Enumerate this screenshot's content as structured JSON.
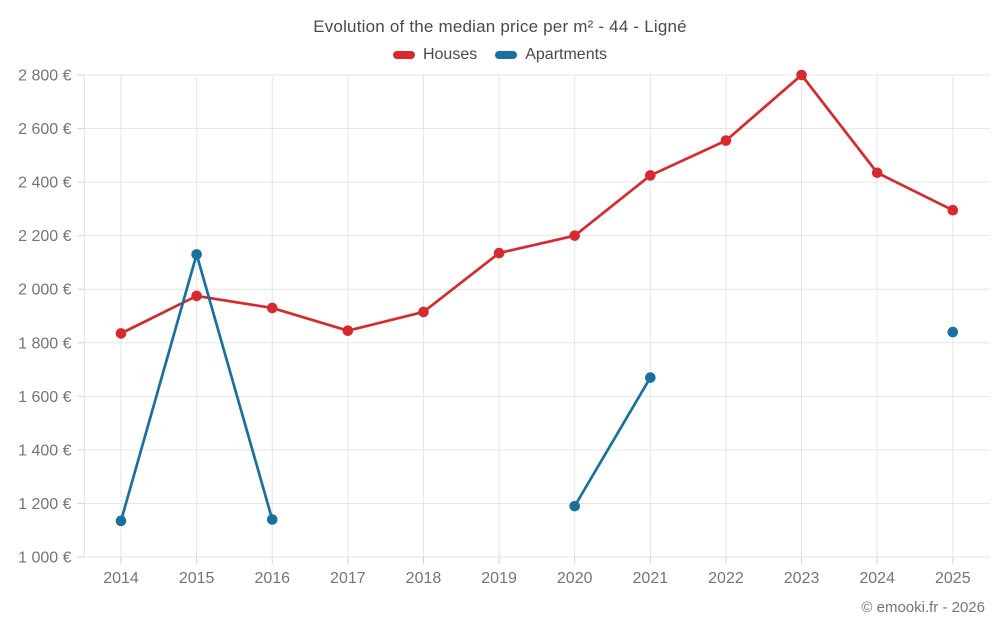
{
  "footer": {
    "copyright": "© emooki.fr - 2026"
  },
  "colors": {
    "houses": "#d8292f",
    "apartments": "#17709f",
    "gridline": "#e6e6e6",
    "tick": "#d2d2d2",
    "axis_label": "#757575",
    "title_text": "#4a4a4a",
    "background": "#ffffff"
  },
  "chart_data": {
    "type": "line",
    "title": "Evolution of the median price per m² - 44 - Ligné",
    "x": [
      "2014",
      "2015",
      "2016",
      "2017",
      "2018",
      "2019",
      "2020",
      "2021",
      "2022",
      "2023",
      "2024",
      "2025"
    ],
    "series": [
      {
        "name": "Houses",
        "color": "#d8292f",
        "values": [
          1835,
          1975,
          1930,
          1845,
          1915,
          2135,
          2200,
          2425,
          2555,
          2800,
          2435,
          2295
        ]
      },
      {
        "name": "Apartments",
        "color": "#17709f",
        "values": [
          1135,
          2130,
          1140,
          null,
          null,
          null,
          1190,
          1670,
          null,
          null,
          null,
          1840
        ]
      }
    ],
    "ylim": [
      1000,
      2800
    ],
    "ytick_step": 200,
    "yticks": [
      {
        "value": 1000,
        "label": "1 000 €"
      },
      {
        "value": 1200,
        "label": "1 200 €"
      },
      {
        "value": 1400,
        "label": "1 400 €"
      },
      {
        "value": 1600,
        "label": "1 600 €"
      },
      {
        "value": 1800,
        "label": "1 800 €"
      },
      {
        "value": 2000,
        "label": "2 000 €"
      },
      {
        "value": 2200,
        "label": "2 200 €"
      },
      {
        "value": 2400,
        "label": "2 400 €"
      },
      {
        "value": 2600,
        "label": "2 600 €"
      },
      {
        "value": 2800,
        "label": "2 800 €"
      }
    ],
    "grid": true,
    "legend_position": "top-center",
    "xlabel": "",
    "ylabel": ""
  }
}
